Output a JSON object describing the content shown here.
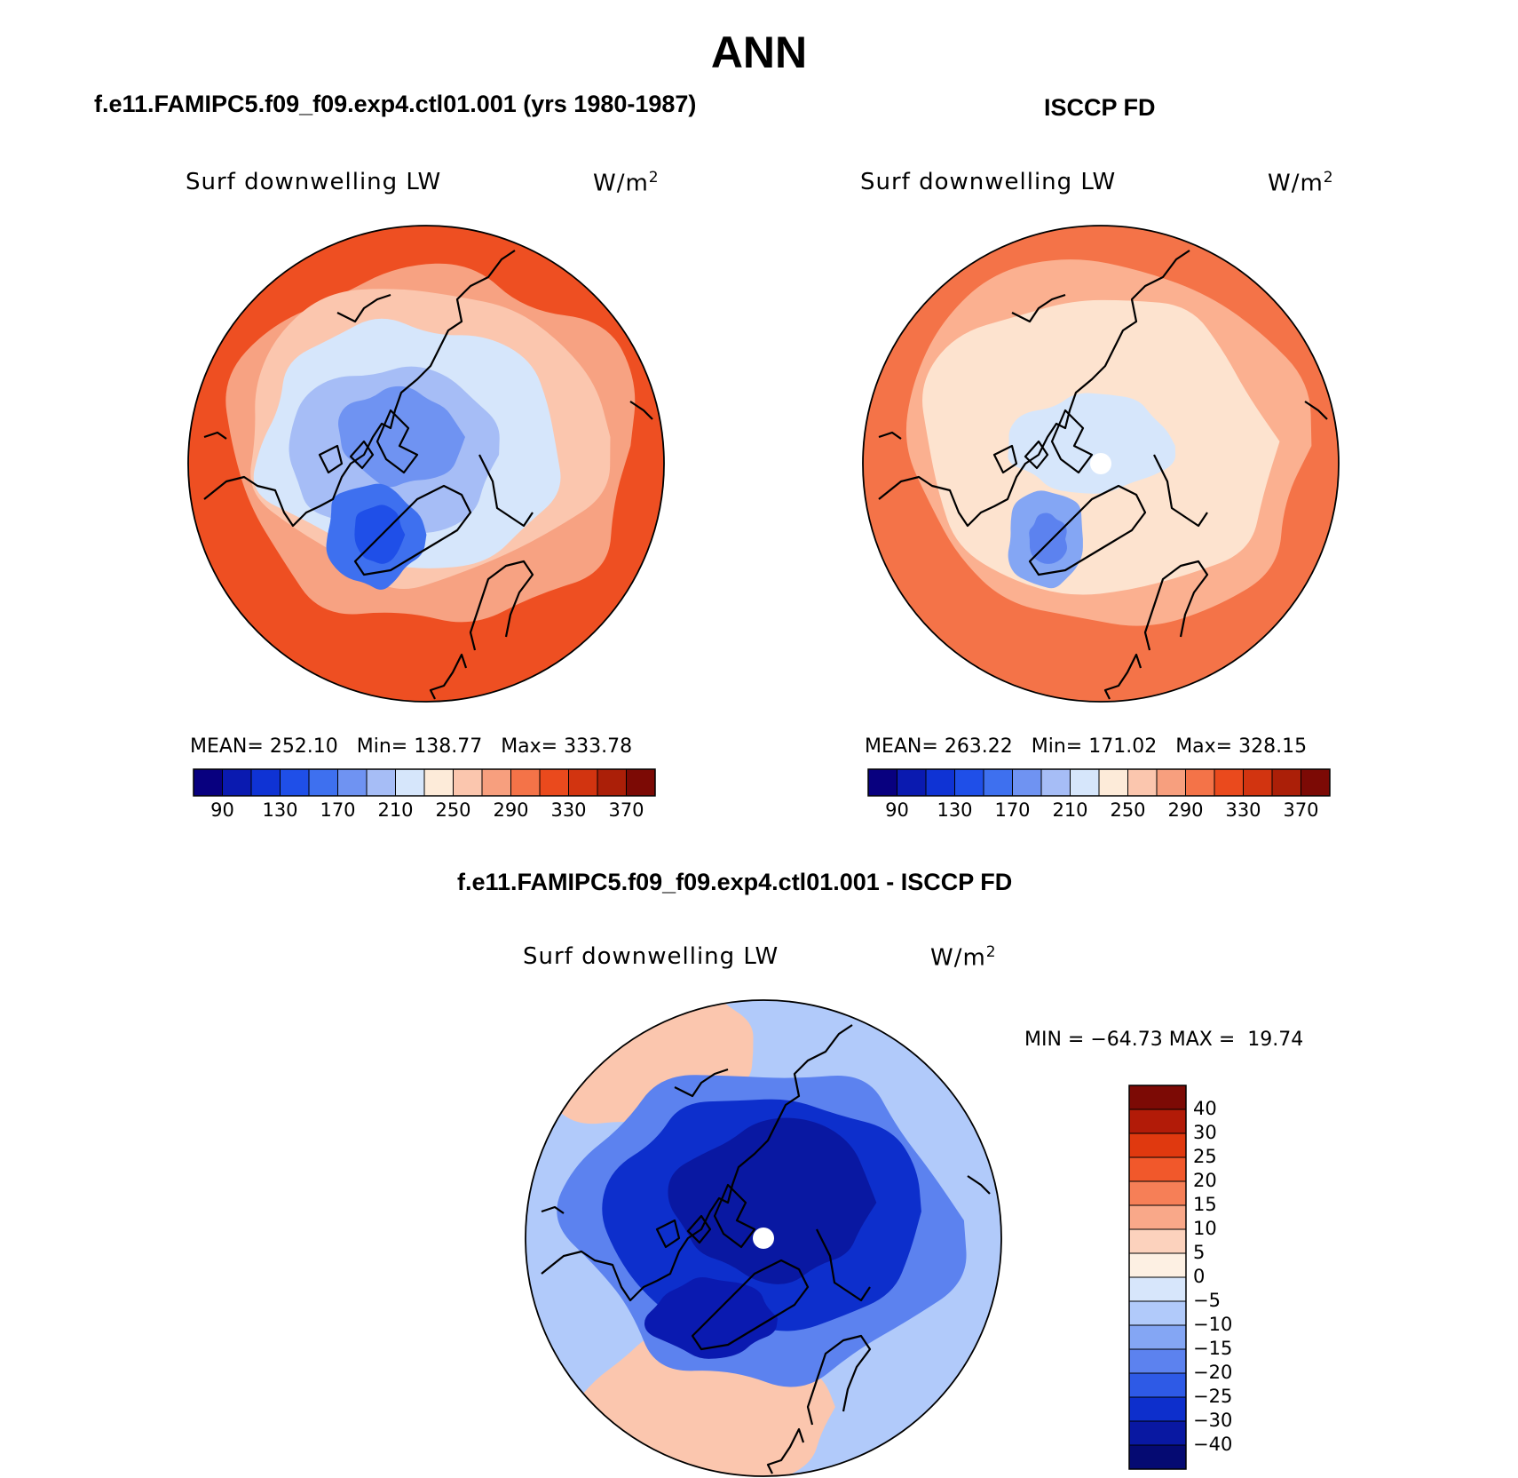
{
  "figure": {
    "title": "ANN"
  },
  "panels": [
    {
      "id": "model",
      "title": "f.e11.FAMIPC5.f09_f09.exp4.ctl01.001 (yrs 1980-1987)",
      "variable": "Surf downwelling LW",
      "units_base": "W/m",
      "units_exp": "2",
      "stats": "MEAN= 252.10   Min= 138.77   Max= 333.78",
      "mean": 252.1,
      "min": 138.77,
      "max": 333.78
    },
    {
      "id": "obs",
      "title": "ISCCP FD",
      "variable": "Surf downwelling LW",
      "units_base": "W/m",
      "units_exp": "2",
      "stats": "MEAN= 263.22   Min= 171.02   Max= 328.15",
      "mean": 263.22,
      "min": 171.02,
      "max": 328.15
    },
    {
      "id": "diff",
      "title": "f.e11.FAMIPC5.f09_f09.exp4.ctl01.001 - ISCCP FD",
      "variable": "Surf downwelling LW",
      "units_base": "W/m",
      "units_exp": "2",
      "stats": "MIN = −64.73 MAX =  19.74",
      "min": -64.73,
      "max": 19.74
    }
  ],
  "chart_data": {
    "type": "heatmap",
    "projection": "north polar stereographic",
    "field_colorbar": {
      "orientation": "horizontal",
      "tick_labels": [
        "90",
        "130",
        "170",
        "210",
        "250",
        "290",
        "330",
        "370"
      ],
      "colors": [
        "#08007f",
        "#0a1ab0",
        "#0f33d4",
        "#1f4fe8",
        "#3e70ef",
        "#6f93f2",
        "#a6bdf6",
        "#d6e6fb",
        "#fdebd9",
        "#fbc6ae",
        "#f79f7e",
        "#f47348",
        "#ea4a1d",
        "#d23410",
        "#ab1f08",
        "#7c0a05"
      ]
    },
    "difference_colorbar": {
      "orientation": "vertical",
      "tick_labels": [
        "40",
        "30",
        "25",
        "20",
        "15",
        "10",
        "5",
        "0",
        "−5",
        "−10",
        "−15",
        "−20",
        "−25",
        "−30",
        "−40"
      ],
      "colors": [
        "#7c0a05",
        "#b21b08",
        "#e0390f",
        "#f1582b",
        "#f67f57",
        "#f9a889",
        "#fcd2bd",
        "#fdf0e3",
        "#d7e6fb",
        "#b1cafa",
        "#84a6f4",
        "#5c82ef",
        "#2e5ae6",
        "#0d2fcc",
        "#0918a2",
        "#050a72"
      ]
    },
    "map_colors": {
      "model": {
        "outer": "#ee4f22",
        "ring_mid": "#f7a282",
        "inner_warm": "#fbc6ae",
        "ice": "#d6e6fb",
        "ice2": "#a6bdf6",
        "core": "#6f93f2",
        "greenland": "#3e70ef",
        "greenland_core": "#1f4fe8"
      },
      "obs": {
        "outer": "#f47348",
        "ring_mid": "#fbb090",
        "inner_warm": "#fde3cf",
        "ice": "#d6e6fb",
        "greenland": "#84a6f4",
        "greenland_core": "#5c82ef"
      },
      "diff": {
        "outer": "#b1cafa",
        "warm": "#fbc6ae",
        "mid": "#5c82ef",
        "core": "#0d2fcc",
        "deep": "#0918a2",
        "greenland": "#0a1ab0"
      }
    }
  }
}
